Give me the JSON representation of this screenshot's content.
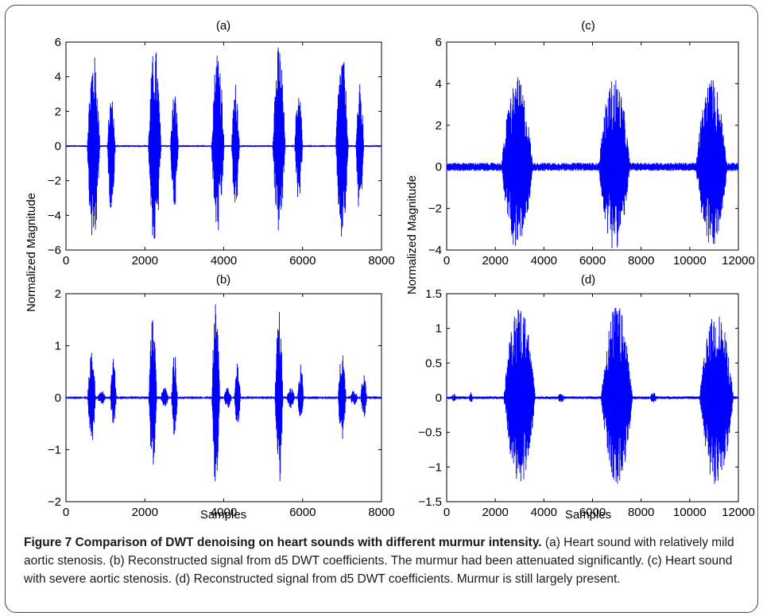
{
  "figure": {
    "caption_title": "Figure 7 Comparison of DWT denoising on heart sounds with different murmur intensity.",
    "caption_text": " (a) Heart sound with relatively mild aortic stenosis. (b) Reconstructed signal from d5 DWT coefficients. The murmur had been attenuated significantly. (c) Heart sound with severe aortic stenosis. (d) Reconstructed signal from d5 DWT coefficients. Murmur is still largely present."
  },
  "colors": {
    "signal": "#0000ff",
    "axes": "#000000"
  },
  "chart_data": [
    {
      "panel": "a",
      "type": "line",
      "title": "(a)",
      "xlabel": "",
      "ylabel": "Normalized Magnitude",
      "xlim": [
        0,
        8000
      ],
      "ylim": [
        -6,
        6
      ],
      "xticks": [
        0,
        2000,
        4000,
        6000,
        8000
      ],
      "yticks": [
        -6,
        -4,
        -2,
        0,
        2,
        4,
        6
      ],
      "bursts": [
        {
          "center": 700,
          "width": 320,
          "amp": 5.4,
          "neg": 5.9
        },
        {
          "center": 1150,
          "width": 200,
          "amp": 3.0,
          "neg": 3.8
        },
        {
          "center": 2250,
          "width": 320,
          "amp": 5.9,
          "neg": 6.0
        },
        {
          "center": 2750,
          "width": 200,
          "amp": 3.2,
          "neg": 3.6
        },
        {
          "center": 3850,
          "width": 320,
          "amp": 5.9,
          "neg": 5.3
        },
        {
          "center": 4300,
          "width": 200,
          "amp": 3.7,
          "neg": 3.8
        },
        {
          "center": 5400,
          "width": 320,
          "amp": 5.9,
          "neg": 5.1
        },
        {
          "center": 5900,
          "width": 200,
          "amp": 3.5,
          "neg": 3.3
        },
        {
          "center": 7000,
          "width": 320,
          "amp": 5.4,
          "neg": 5.6
        },
        {
          "center": 7450,
          "width": 200,
          "amp": 3.6,
          "neg": 4.2
        }
      ],
      "baseline": 0.05
    },
    {
      "panel": "b",
      "type": "line",
      "title": "(b)",
      "xlabel": "Samples",
      "ylabel": "",
      "xlim": [
        0,
        8000
      ],
      "ylim": [
        -2,
        2
      ],
      "xticks": [
        0,
        2000,
        4000,
        6000,
        8000
      ],
      "yticks": [
        -2,
        -1,
        0,
        1,
        2
      ],
      "bursts": [
        {
          "center": 650,
          "width": 200,
          "amp": 0.9,
          "neg": 0.9
        },
        {
          "center": 900,
          "width": 200,
          "amp": 0.15,
          "neg": 0.15
        },
        {
          "center": 1200,
          "width": 150,
          "amp": 0.85,
          "neg": 0.55
        },
        {
          "center": 2200,
          "width": 200,
          "amp": 1.65,
          "neg": 1.35
        },
        {
          "center": 2500,
          "width": 200,
          "amp": 0.2,
          "neg": 0.2
        },
        {
          "center": 2750,
          "width": 150,
          "amp": 0.85,
          "neg": 0.8
        },
        {
          "center": 3800,
          "width": 200,
          "amp": 1.85,
          "neg": 1.8
        },
        {
          "center": 4100,
          "width": 200,
          "amp": 0.2,
          "neg": 0.2
        },
        {
          "center": 4350,
          "width": 150,
          "amp": 0.8,
          "neg": 0.55
        },
        {
          "center": 5400,
          "width": 200,
          "amp": 1.8,
          "neg": 1.75
        },
        {
          "center": 5700,
          "width": 200,
          "amp": 0.2,
          "neg": 0.2
        },
        {
          "center": 5950,
          "width": 150,
          "amp": 0.65,
          "neg": 0.45
        },
        {
          "center": 7000,
          "width": 200,
          "amp": 0.9,
          "neg": 0.85
        },
        {
          "center": 7300,
          "width": 200,
          "amp": 0.15,
          "neg": 0.15
        },
        {
          "center": 7550,
          "width": 150,
          "amp": 0.5,
          "neg": 0.4
        }
      ],
      "baseline": 0.01
    },
    {
      "panel": "c",
      "type": "line",
      "title": "(c)",
      "xlabel": "",
      "ylabel": "Normalized Magnitude",
      "xlim": [
        0,
        12000
      ],
      "ylim": [
        -4,
        6
      ],
      "xticks": [
        0,
        2000,
        4000,
        6000,
        8000,
        10000,
        12000
      ],
      "yticks": [
        -4,
        -2,
        0,
        2,
        4,
        6
      ],
      "bursts": [
        {
          "center": 2900,
          "width": 1300,
          "amp": 4.3,
          "neg": 4.0
        },
        {
          "center": 6900,
          "width": 1300,
          "amp": 4.35,
          "neg": 4.0
        },
        {
          "center": 10900,
          "width": 1300,
          "amp": 4.3,
          "neg": 4.0
        }
      ],
      "baseline": 0.2
    },
    {
      "panel": "d",
      "type": "line",
      "title": "(d)",
      "xlabel": "Samples",
      "ylabel": "",
      "xlim": [
        0,
        12000
      ],
      "ylim": [
        -1.5,
        1.5
      ],
      "xticks": [
        0,
        2000,
        4000,
        6000,
        8000,
        10000,
        12000
      ],
      "yticks": [
        -1.5,
        -1,
        -0.5,
        0,
        0.5,
        1,
        1.5
      ],
      "bursts": [
        {
          "center": 300,
          "width": 200,
          "amp": 0.06,
          "neg": 0.06
        },
        {
          "center": 1000,
          "width": 150,
          "amp": 0.08,
          "neg": 0.08
        },
        {
          "center": 3000,
          "width": 1300,
          "amp": 1.35,
          "neg": 1.3
        },
        {
          "center": 4700,
          "width": 300,
          "amp": 0.07,
          "neg": 0.07
        },
        {
          "center": 7000,
          "width": 1300,
          "amp": 1.35,
          "neg": 1.3
        },
        {
          "center": 8500,
          "width": 300,
          "amp": 0.08,
          "neg": 0.08
        },
        {
          "center": 11100,
          "width": 1400,
          "amp": 1.25,
          "neg": 1.3
        }
      ],
      "baseline": 0.02
    }
  ]
}
